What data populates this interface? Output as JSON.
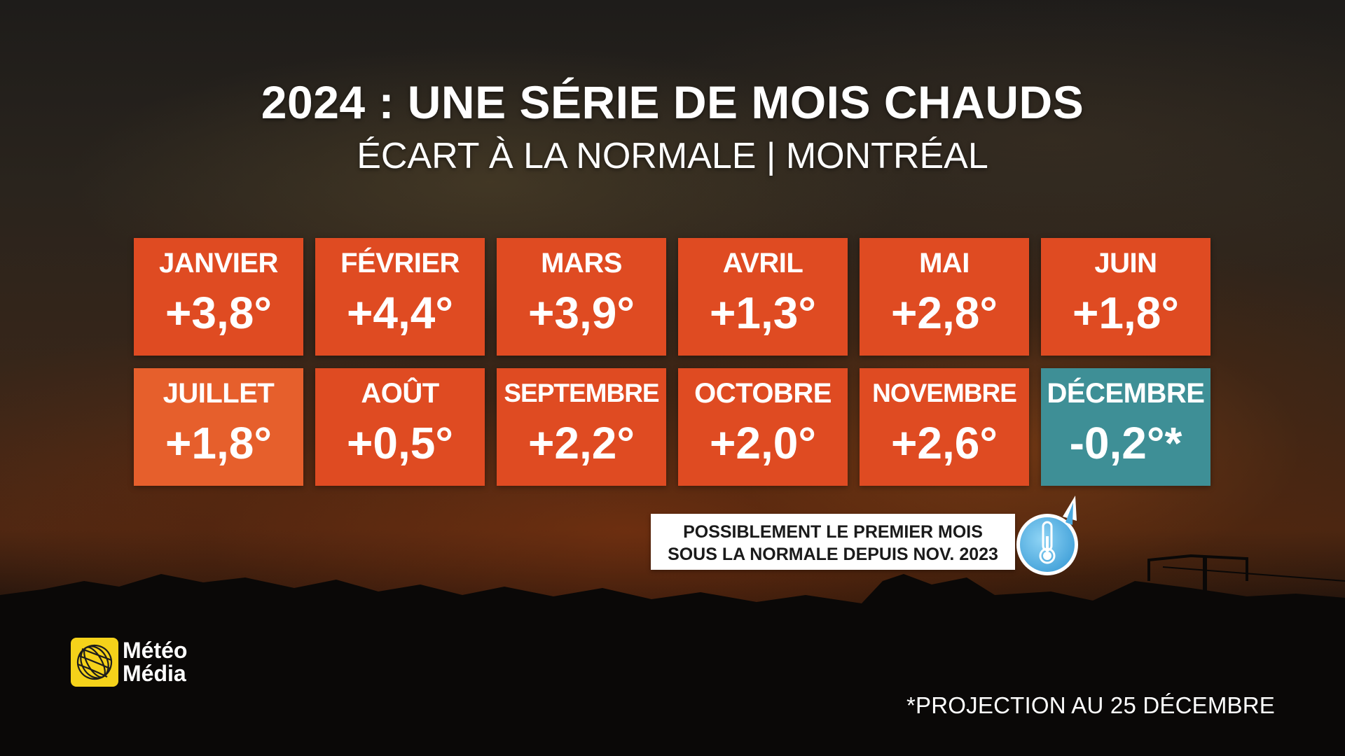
{
  "header": {
    "title": "2024 : UNE SÉRIE DE MOIS CHAUDS",
    "subtitle": "ÉCART À LA NORMALE | MONTRÉAL"
  },
  "months": [
    {
      "name": "JANVIER",
      "value": "+3,8°",
      "status": "warm"
    },
    {
      "name": "FÉVRIER",
      "value": "+4,4°",
      "status": "warm"
    },
    {
      "name": "MARS",
      "value": "+3,9°",
      "status": "warm"
    },
    {
      "name": "AVRIL",
      "value": "+1,3°",
      "status": "warm"
    },
    {
      "name": "MAI",
      "value": "+2,8°",
      "status": "warm"
    },
    {
      "name": "JUIN",
      "value": "+1,8°",
      "status": "warm"
    },
    {
      "name": "JUILLET",
      "value": "+1,8°",
      "status": "warm-light"
    },
    {
      "name": "AOÛT",
      "value": "+0,5°",
      "status": "warm"
    },
    {
      "name": "SEPTEMBRE",
      "value": "+2,2°",
      "status": "warm"
    },
    {
      "name": "OCTOBRE",
      "value": "+2,0°",
      "status": "warm"
    },
    {
      "name": "NOVEMBRE",
      "value": "+2,6°",
      "status": "warm"
    },
    {
      "name": "DÉCEMBRE",
      "value": "-0,2°*",
      "status": "cool"
    }
  ],
  "colors": {
    "warm": "#df4b22",
    "warm_light": "#e65f2c",
    "cool": "#3e8f96",
    "badge_blue": "#5fb8ea"
  },
  "note": {
    "line1": "POSSIBLEMENT LE PREMIER MOIS",
    "line2": "SOUS LA NORMALE DEPUIS NOV. 2023",
    "icon": "thermometer-icon"
  },
  "logo": {
    "line1": "Météo",
    "line2": "Média",
    "icon": "globe-logo-icon"
  },
  "footnote": "*PROJECTION AU 25 DÉCEMBRE"
}
